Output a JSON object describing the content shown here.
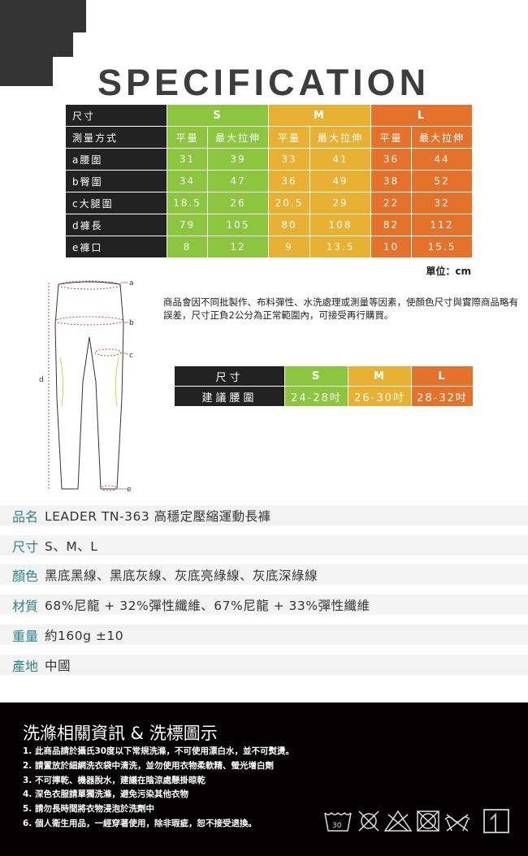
{
  "title": "SPECIFICATION",
  "size_table": {
    "header": {
      "label": "尺寸",
      "sizes": [
        "S",
        "M",
        "L"
      ]
    },
    "method": {
      "label": "測量方式",
      "cols": [
        "平量",
        "最大拉伸",
        "平量",
        "最大拉伸",
        "平量",
        "最大拉伸"
      ]
    },
    "rows": [
      {
        "label": "a腰圍",
        "values": [
          "31",
          "39",
          "33",
          "41",
          "36",
          "44"
        ]
      },
      {
        "label": "b臀圍",
        "values": [
          "34",
          "47",
          "36",
          "49",
          "38",
          "52"
        ]
      },
      {
        "label": "c大腿圍",
        "values": [
          "18.5",
          "26",
          "20.5",
          "29",
          "22",
          "32"
        ]
      },
      {
        "label": "d褲長",
        "values": [
          "79",
          "105",
          "80",
          "108",
          "82",
          "112"
        ]
      },
      {
        "label": "e褲口",
        "values": [
          "8",
          "12",
          "9",
          "13.5",
          "10",
          "15.5"
        ]
      }
    ],
    "unit": "單位：cm"
  },
  "colors": {
    "S": "#8cc63e",
    "M": "#e8b132",
    "L": "#e5722a",
    "label_bg": "#222222",
    "spec_label": "#2f8585"
  },
  "diagram_labels": [
    "a",
    "b",
    "c",
    "d",
    "e"
  ],
  "note": "商品會因不同批製作、布料彈性、水洗處理或測量等因素，使顏色尺寸與實際商品略有誤差，尺寸正負2公分為正常範圍內，可接受再行購買。",
  "waist_table": {
    "header": {
      "label": "尺寸",
      "sizes": [
        "S",
        "M",
        "L"
      ]
    },
    "row": {
      "label": "建議腰圍",
      "values": [
        "24-28吋",
        "26-30吋",
        "28-32吋"
      ]
    }
  },
  "specs": [
    {
      "key": "品名",
      "value": "LEADER TN-363 高穩定壓縮運動長褲"
    },
    {
      "key": "尺寸",
      "value": "S、M、L"
    },
    {
      "key": "顏色",
      "value": "黑底黑線、黑底灰線、灰底亮綠線、灰底深綠線"
    },
    {
      "key": "材質",
      "value": "68%尼龍 + 32%彈性纖維、67%尼龍 + 33%彈性纖維"
    },
    {
      "key": "重量",
      "value": "約160g ±10"
    },
    {
      "key": "產地",
      "value": "中國"
    }
  ],
  "care": {
    "title": "洗滌相關資訊 & 洗標圖示",
    "items": [
      "1. 此商品請於攝氏30度以下常規洗滌，不可使用漂白水，並不可熨燙。",
      "2. 請置放於細網洗衣袋中清洗，並勿使用衣物柔軟精、螢光增白劑",
      "3. 不可擰乾、機器脫水，建議在陰涼處懸掛晾乾",
      "4. 深色衣服請單獨洗滌，避免污染其他衣物",
      "5. 請勿長時間將衣物浸泡於洗劑中",
      "6. 個人衛生用品，一經穿著使用，除非瑕疵，恕不接受退換。"
    ],
    "wash_temp": "30",
    "icons": [
      "wash-30-icon",
      "no-iron-icon",
      "no-bleach-icon",
      "no-tumble-dry-icon",
      "no-wring-icon",
      "hang-dry-icon"
    ]
  }
}
